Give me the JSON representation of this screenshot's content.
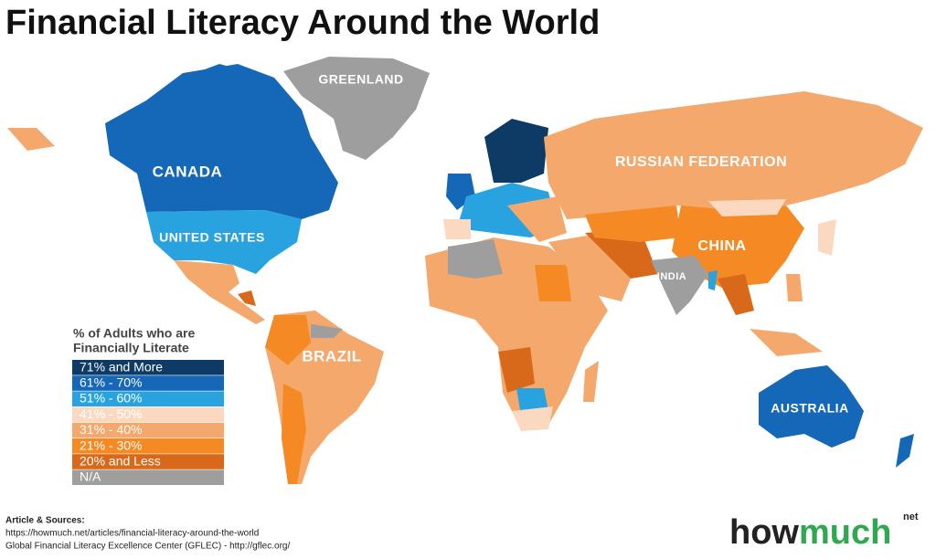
{
  "title": "Financial Literacy Around the World",
  "map_labels": [
    "GREENLAND",
    "CANADA",
    "UNITED STATES",
    "BRAZIL",
    "RUSSIAN FEDERATION",
    "CHINA",
    "INDIA",
    "AUSTRALIA"
  ],
  "legend": {
    "title_lines": [
      "% of Adults who are",
      "Financially Literate"
    ],
    "items": [
      {
        "label": "71% and More",
        "color": "#0d3b66"
      },
      {
        "label": "61% - 70%",
        "color": "#1567b8"
      },
      {
        "label": "51% - 60%",
        "color": "#29a3e0"
      },
      {
        "label": "41% - 50%",
        "color": "#fbd9c1"
      },
      {
        "label": "31% - 40%",
        "color": "#f5a86b"
      },
      {
        "label": "21% - 30%",
        "color": "#f58a24"
      },
      {
        "label": "20% and Less",
        "color": "#d9691a"
      },
      {
        "label": "N/A",
        "color": "#9e9e9e"
      }
    ]
  },
  "sources": {
    "heading": "Article & Sources:",
    "lines": [
      "https://howmuch.net/articles/financial-literacy-around-the-world",
      "Global Financial Literacy Excellence Center (GFLEC) - http://gflec.org/"
    ]
  },
  "logo": {
    "part1": "how",
    "part2": "much",
    "suffix": "net"
  }
}
